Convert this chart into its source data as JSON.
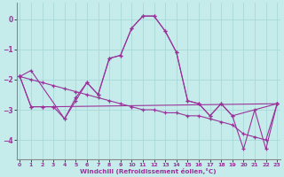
{
  "xlabel": "Windchill (Refroidissement éolien,°C)",
  "background_color": "#c5eceb",
  "grid_color": "#a8d8d8",
  "line_color": "#993399",
  "xlim": [
    -0.3,
    23.3
  ],
  "ylim": [
    -4.65,
    0.55
  ],
  "yticks": [
    0,
    -1,
    -2,
    -3,
    -4
  ],
  "xticks": [
    0,
    1,
    2,
    3,
    4,
    5,
    6,
    7,
    8,
    9,
    10,
    11,
    12,
    13,
    14,
    15,
    16,
    17,
    18,
    19,
    20,
    21,
    22,
    23
  ],
  "series": [
    {
      "x": [
        0,
        1,
        2,
        3,
        4,
        5,
        6,
        7,
        8,
        9,
        10,
        11,
        12,
        13,
        14,
        15,
        16,
        17,
        18,
        19,
        20,
        21,
        22,
        23
      ],
      "y": [
        -1.9,
        -2.9,
        -2.9,
        -2.9,
        -3.3,
        -2.7,
        -2.1,
        -2.5,
        -1.3,
        -1.2,
        -0.3,
        0.1,
        0.1,
        -0.4,
        -1.1,
        -2.7,
        -2.8,
        -3.2,
        -2.8,
        -3.2,
        -4.3,
        -3.0,
        -4.3,
        -2.8
      ]
    },
    {
      "x": [
        0,
        1,
        2,
        3,
        4,
        5,
        6,
        7,
        8,
        9,
        10,
        11,
        12,
        13,
        14,
        15,
        16,
        17,
        18,
        19,
        20,
        21,
        22,
        23
      ],
      "y": [
        -1.9,
        -2.0,
        -2.1,
        -2.2,
        -2.3,
        -2.4,
        -2.5,
        -2.6,
        -2.7,
        -2.8,
        -2.9,
        -3.0,
        -3.0,
        -3.1,
        -3.1,
        -3.2,
        -3.2,
        -3.3,
        -3.4,
        -3.5,
        -3.8,
        -3.9,
        -4.0,
        -2.8
      ]
    },
    {
      "x": [
        0,
        1,
        4,
        5,
        6,
        7,
        8,
        9,
        10,
        11,
        12,
        13,
        14,
        15,
        16,
        17,
        18,
        19,
        23
      ],
      "y": [
        -1.9,
        -1.7,
        -3.3,
        -2.6,
        -2.1,
        -2.5,
        -1.3,
        -1.2,
        -0.3,
        0.1,
        0.1,
        -0.4,
        -1.1,
        -2.7,
        -2.8,
        -3.2,
        -2.8,
        -3.2,
        -2.8
      ]
    },
    {
      "x": [
        0,
        1,
        2,
        3,
        23
      ],
      "y": [
        -1.9,
        -2.9,
        -2.9,
        -2.9,
        -2.8
      ]
    }
  ]
}
